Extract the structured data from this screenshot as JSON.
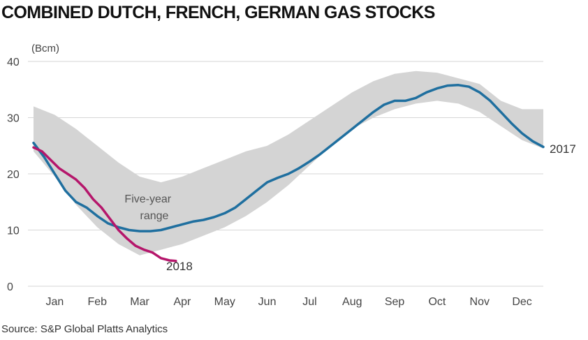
{
  "chart_data": {
    "type": "line",
    "title": "COMBINED DUTCH, FRENCH, GERMAN GAS STOCKS",
    "ylabel": "(Bcm)",
    "xlabel": "",
    "ylim": [
      0,
      40
    ],
    "yticks": [
      0,
      10,
      20,
      30,
      40
    ],
    "xlim": [
      0,
      12
    ],
    "categories": [
      "Jan",
      "Feb",
      "Mar",
      "Apr",
      "May",
      "Jun",
      "Jul",
      "Aug",
      "Sep",
      "Oct",
      "Nov",
      "Dec"
    ],
    "grid": true,
    "range": {
      "name": "Five-year range",
      "label_lines": [
        "Five-year",
        "range"
      ],
      "x": [
        0,
        0.5,
        1.0,
        1.5,
        2.0,
        2.5,
        3.0,
        3.5,
        4.0,
        4.5,
        5.0,
        5.5,
        6.0,
        6.5,
        7.0,
        7.5,
        8.0,
        8.5,
        9.0,
        9.5,
        10.0,
        10.5,
        11.0,
        11.5,
        12.0
      ],
      "upper": [
        32,
        30.5,
        28,
        25,
        22,
        19.5,
        18.5,
        19.5,
        21,
        22.5,
        24,
        25,
        27,
        29.5,
        32,
        34.5,
        36.5,
        37.8,
        38.3,
        38,
        37,
        36,
        33,
        31.5,
        31.5
      ],
      "lower": [
        24,
        19.5,
        14.5,
        10.5,
        7.5,
        5.5,
        6.5,
        7.5,
        9,
        10.5,
        12.5,
        15,
        18,
        21.5,
        25,
        28,
        30,
        31.5,
        32.5,
        33,
        32.5,
        31,
        28.5,
        26,
        24.5
      ]
    },
    "series": [
      {
        "name": "2017",
        "color": "#1f6f9f",
        "x": [
          0,
          0.25,
          0.5,
          0.75,
          1.0,
          1.25,
          1.5,
          1.75,
          2.0,
          2.25,
          2.5,
          2.75,
          3.0,
          3.25,
          3.5,
          3.75,
          4.0,
          4.25,
          4.5,
          4.75,
          5.0,
          5.25,
          5.5,
          5.75,
          6.0,
          6.25,
          6.5,
          6.75,
          7.0,
          7.25,
          7.5,
          7.75,
          8.0,
          8.25,
          8.5,
          8.75,
          9.0,
          9.25,
          9.5,
          9.75,
          10.0,
          10.25,
          10.5,
          10.75,
          11.0,
          11.25,
          11.5,
          11.75,
          12.0
        ],
        "values": [
          25.5,
          23,
          20,
          17,
          15,
          14,
          12.5,
          11.2,
          10.5,
          10,
          9.8,
          9.8,
          10,
          10.5,
          11,
          11.5,
          11.8,
          12.3,
          13,
          14,
          15.5,
          17,
          18.5,
          19.3,
          20,
          21,
          22.2,
          23.5,
          25,
          26.5,
          28,
          29.5,
          31,
          32.3,
          33,
          33,
          33.5,
          34.5,
          35.2,
          35.7,
          35.8,
          35.5,
          34.5,
          33,
          31,
          29,
          27.2,
          25.8,
          24.8
        ]
      },
      {
        "name": "2018",
        "color": "#b5166b",
        "x": [
          0,
          0.2,
          0.4,
          0.6,
          0.8,
          1.0,
          1.2,
          1.4,
          1.6,
          1.8,
          2.0,
          2.2,
          2.4,
          2.6,
          2.8,
          3.0,
          3.2,
          3.35
        ],
        "values": [
          24.7,
          24,
          22.5,
          21,
          20,
          19,
          17.5,
          15.5,
          14,
          12,
          10,
          8.5,
          7.2,
          6.5,
          6,
          5,
          4.6,
          4.5
        ]
      }
    ],
    "source": "Source: S&P Global Platts Analytics"
  }
}
